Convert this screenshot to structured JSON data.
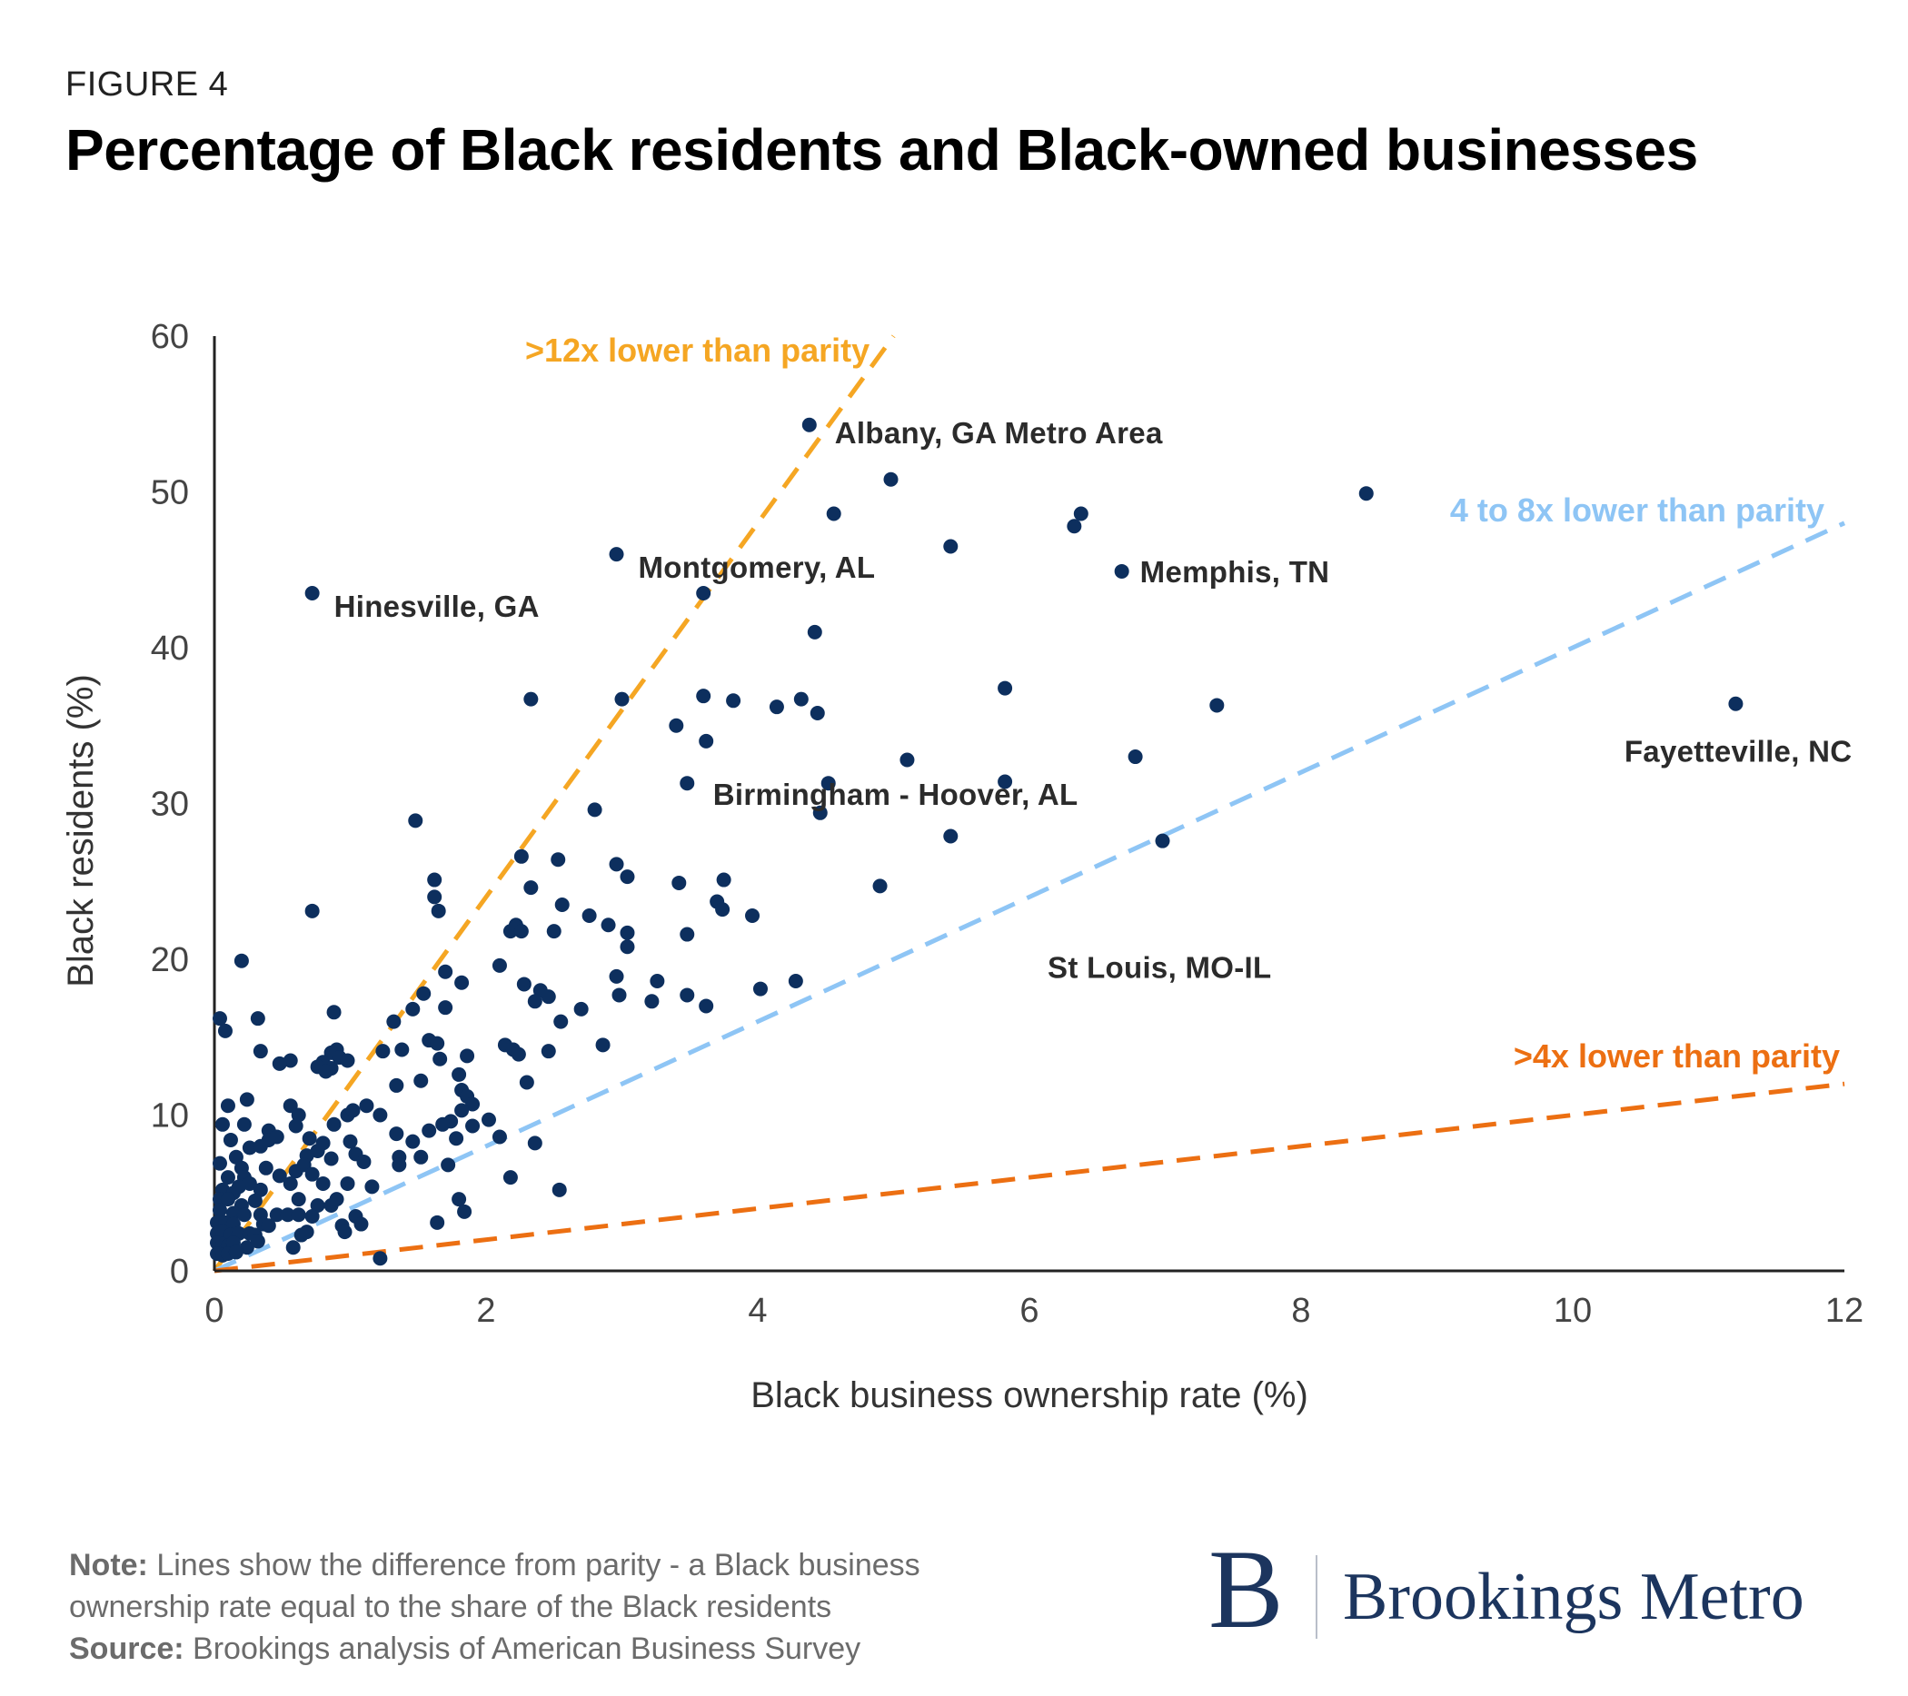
{
  "figure_label": "FIGURE 4",
  "title": "Percentage of Black residents and Black-owned businesses",
  "note": {
    "note_label": "Note:",
    "note_text": " Lines show the difference from parity - a Black business ownership rate equal to the share of the Black residents",
    "source_label": "Source:",
    "source_text": " Brookings analysis of American Business Survey"
  },
  "brand": {
    "mark": "B",
    "name": "Brookings Metro"
  },
  "colors": {
    "points": "#0d2f5e",
    "line_12x": "#f5a623",
    "line_4to8x": "#8ec5f5",
    "line_4x": "#ec6f12",
    "axis": "#222222",
    "tick_text": "#444444"
  },
  "chart_data": {
    "type": "scatter",
    "xlabel": "Black business ownership rate (%)",
    "ylabel": "Black residents (%)",
    "xlim": [
      0,
      12
    ],
    "ylim": [
      0,
      60
    ],
    "xticks": [
      "0",
      "2",
      "4",
      "6",
      "8",
      "10",
      "12"
    ],
    "yticks": [
      "0",
      "10",
      "20",
      "30",
      "40",
      "50",
      "60"
    ],
    "reference_lines": [
      {
        "label": ">12x lower than parity",
        "slope": 12,
        "color": "#f5a623"
      },
      {
        "label": "4 to 8x lower than parity",
        "slope": 4,
        "color": "#8ec5f5"
      },
      {
        "label": ">4x lower than parity",
        "slope": 1,
        "color": "#ec6f12"
      }
    ],
    "annotations": [
      {
        "label": "Albany, GA Metro Area",
        "x": 4.38,
        "y": 54.3
      },
      {
        "label": "Montgomery, AL",
        "x": 2.96,
        "y": 46.0
      },
      {
        "label": "Hinesville, GA",
        "x": 0.72,
        "y": 43.5
      },
      {
        "label": "Memphis, TN",
        "x": 6.68,
        "y": 44.9
      },
      {
        "label": "Fayetteville, NC",
        "x": 11.2,
        "y": 36.4
      },
      {
        "label": "Birmingham - Hoover, AL",
        "x": 3.55,
        "y": 30.5
      },
      {
        "label": "St Louis, MO-IL",
        "x": 5.96,
        "y": 19.5
      }
    ],
    "points": [
      [
        4.38,
        54.3
      ],
      [
        4.98,
        50.8
      ],
      [
        8.48,
        49.9
      ],
      [
        4.56,
        48.6
      ],
      [
        6.38,
        48.6
      ],
      [
        6.33,
        47.8
      ],
      [
        5.42,
        46.5
      ],
      [
        2.96,
        46.0
      ],
      [
        6.68,
        44.9
      ],
      [
        0.72,
        43.5
      ],
      [
        3.6,
        43.5
      ],
      [
        4.42,
        41.0
      ],
      [
        5.82,
        37.4
      ],
      [
        2.33,
        36.7
      ],
      [
        3.0,
        36.7
      ],
      [
        3.6,
        36.9
      ],
      [
        3.82,
        36.6
      ],
      [
        4.32,
        36.7
      ],
      [
        4.14,
        36.2
      ],
      [
        4.44,
        35.8
      ],
      [
        7.38,
        36.3
      ],
      [
        11.2,
        36.4
      ],
      [
        3.4,
        35.0
      ],
      [
        3.62,
        34.0
      ],
      [
        5.1,
        32.8
      ],
      [
        6.78,
        33.0
      ],
      [
        3.48,
        31.3
      ],
      [
        4.52,
        31.3
      ],
      [
        5.82,
        31.4
      ],
      [
        4.46,
        29.4
      ],
      [
        1.48,
        28.9
      ],
      [
        2.8,
        29.6
      ],
      [
        5.42,
        27.9
      ],
      [
        6.98,
        27.6
      ],
      [
        2.26,
        26.6
      ],
      [
        2.53,
        26.4
      ],
      [
        2.96,
        26.1
      ],
      [
        3.04,
        25.3
      ],
      [
        1.62,
        25.1
      ],
      [
        2.33,
        24.6
      ],
      [
        3.42,
        24.9
      ],
      [
        3.75,
        25.1
      ],
      [
        4.9,
        24.7
      ],
      [
        1.62,
        24.0
      ],
      [
        1.65,
        23.1
      ],
      [
        0.72,
        23.1
      ],
      [
        2.56,
        23.5
      ],
      [
        3.7,
        23.7
      ],
      [
        3.74,
        23.2
      ],
      [
        2.76,
        22.8
      ],
      [
        3.96,
        22.8
      ],
      [
        2.18,
        21.8
      ],
      [
        2.22,
        22.2
      ],
      [
        2.26,
        21.8
      ],
      [
        2.5,
        21.8
      ],
      [
        2.9,
        22.2
      ],
      [
        3.04,
        21.7
      ],
      [
        3.48,
        21.6
      ],
      [
        3.04,
        20.8
      ],
      [
        0.2,
        19.9
      ],
      [
        2.1,
        19.6
      ],
      [
        1.7,
        19.2
      ],
      [
        2.96,
        18.9
      ],
      [
        1.82,
        18.5
      ],
      [
        2.28,
        18.4
      ],
      [
        2.4,
        18.0
      ],
      [
        3.26,
        18.6
      ],
      [
        4.28,
        18.6
      ],
      [
        1.54,
        17.8
      ],
      [
        2.98,
        17.7
      ],
      [
        3.48,
        17.7
      ],
      [
        4.02,
        18.1
      ],
      [
        2.36,
        17.3
      ],
      [
        2.46,
        17.6
      ],
      [
        2.7,
        16.8
      ],
      [
        3.22,
        17.3
      ],
      [
        3.62,
        17.0
      ],
      [
        1.7,
        16.9
      ],
      [
        1.46,
        16.8
      ],
      [
        0.88,
        16.6
      ],
      [
        0.04,
        16.2
      ],
      [
        0.32,
        16.2
      ],
      [
        1.32,
        16.0
      ],
      [
        2.55,
        16.0
      ],
      [
        0.08,
        15.4
      ],
      [
        1.58,
        14.8
      ],
      [
        1.64,
        14.6
      ],
      [
        2.14,
        14.5
      ],
      [
        2.2,
        14.2
      ],
      [
        2.24,
        13.9
      ],
      [
        2.46,
        14.1
      ],
      [
        2.86,
        14.5
      ],
      [
        0.34,
        14.1
      ],
      [
        0.86,
        14.0
      ],
      [
        0.9,
        14.2
      ],
      [
        1.38,
        14.2
      ],
      [
        1.24,
        14.1
      ],
      [
        0.92,
        13.7
      ],
      [
        0.56,
        13.5
      ],
      [
        0.8,
        13.4
      ],
      [
        0.98,
        13.5
      ],
      [
        1.66,
        13.6
      ],
      [
        1.86,
        13.8
      ],
      [
        0.48,
        13.3
      ],
      [
        0.76,
        13.1
      ],
      [
        0.86,
        13.0
      ],
      [
        0.82,
        12.8
      ],
      [
        1.8,
        12.6
      ],
      [
        1.52,
        12.2
      ],
      [
        1.34,
        11.9
      ],
      [
        1.82,
        11.6
      ],
      [
        2.3,
        12.1
      ],
      [
        1.86,
        11.2
      ],
      [
        1.9,
        10.7
      ],
      [
        1.82,
        10.3
      ],
      [
        0.1,
        10.6
      ],
      [
        0.24,
        11.0
      ],
      [
        0.56,
        10.6
      ],
      [
        0.62,
        10.0
      ],
      [
        0.98,
        10.0
      ],
      [
        1.12,
        10.6
      ],
      [
        1.22,
        10.0
      ],
      [
        1.02,
        10.3
      ],
      [
        0.06,
        9.4
      ],
      [
        0.22,
        9.4
      ],
      [
        0.4,
        9.0
      ],
      [
        0.6,
        9.3
      ],
      [
        0.7,
        8.5
      ],
      [
        0.88,
        9.4
      ],
      [
        1.74,
        9.6
      ],
      [
        1.9,
        9.3
      ],
      [
        2.02,
        9.7
      ],
      [
        1.34,
        8.8
      ],
      [
        1.58,
        9.0
      ],
      [
        1.68,
        9.4
      ],
      [
        1.46,
        8.3
      ],
      [
        0.4,
        8.4
      ],
      [
        0.46,
        8.6
      ],
      [
        0.12,
        8.4
      ],
      [
        0.26,
        7.9
      ],
      [
        0.34,
        8.0
      ],
      [
        0.76,
        7.7
      ],
      [
        0.8,
        8.2
      ],
      [
        1.0,
        8.3
      ],
      [
        2.1,
        8.6
      ],
      [
        2.36,
        8.2
      ],
      [
        1.78,
        8.5
      ],
      [
        1.36,
        7.3
      ],
      [
        1.52,
        7.3
      ],
      [
        1.04,
        7.5
      ],
      [
        0.68,
        7.4
      ],
      [
        0.86,
        7.2
      ],
      [
        0.16,
        7.3
      ],
      [
        0.04,
        6.9
      ],
      [
        0.2,
        6.6
      ],
      [
        0.38,
        6.6
      ],
      [
        0.6,
        6.4
      ],
      [
        0.66,
        6.8
      ],
      [
        1.1,
        7.0
      ],
      [
        1.36,
        6.8
      ],
      [
        1.72,
        6.8
      ],
      [
        0.1,
        6.0
      ],
      [
        0.22,
        6.0
      ],
      [
        0.26,
        5.6
      ],
      [
        0.48,
        6.1
      ],
      [
        0.56,
        5.6
      ],
      [
        0.72,
        6.2
      ],
      [
        0.8,
        5.6
      ],
      [
        0.06,
        5.2
      ],
      [
        0.14,
        5.0
      ],
      [
        0.18,
        5.4
      ],
      [
        0.34,
        5.2
      ],
      [
        0.98,
        5.6
      ],
      [
        1.16,
        5.4
      ],
      [
        2.18,
        6.0
      ],
      [
        2.54,
        5.2
      ],
      [
        0.04,
        4.6
      ],
      [
        0.1,
        4.6
      ],
      [
        0.2,
        4.2
      ],
      [
        0.3,
        4.5
      ],
      [
        0.62,
        4.6
      ],
      [
        0.76,
        4.2
      ],
      [
        0.86,
        4.2
      ],
      [
        0.9,
        4.6
      ],
      [
        1.8,
        4.6
      ],
      [
        0.04,
        3.9
      ],
      [
        0.14,
        3.7
      ],
      [
        0.22,
        3.6
      ],
      [
        0.34,
        3.6
      ],
      [
        0.46,
        3.6
      ],
      [
        0.54,
        3.6
      ],
      [
        0.62,
        3.6
      ],
      [
        0.72,
        3.5
      ],
      [
        1.04,
        3.5
      ],
      [
        1.84,
        3.8
      ],
      [
        0.02,
        3.1
      ],
      [
        0.08,
        3.1
      ],
      [
        0.14,
        3.0
      ],
      [
        0.36,
        3.0
      ],
      [
        0.4,
        2.9
      ],
      [
        0.94,
        2.9
      ],
      [
        1.08,
        3.0
      ],
      [
        1.64,
        3.1
      ],
      [
        0.02,
        2.4
      ],
      [
        0.06,
        2.5
      ],
      [
        0.12,
        2.3
      ],
      [
        0.18,
        2.4
      ],
      [
        0.26,
        2.4
      ],
      [
        0.3,
        2.3
      ],
      [
        0.64,
        2.3
      ],
      [
        0.68,
        2.5
      ],
      [
        0.96,
        2.5
      ],
      [
        0.02,
        1.8
      ],
      [
        0.06,
        1.7
      ],
      [
        0.1,
        1.6
      ],
      [
        0.14,
        1.8
      ],
      [
        0.24,
        1.5
      ],
      [
        0.32,
        1.9
      ],
      [
        0.58,
        1.5
      ],
      [
        0.02,
        1.1
      ],
      [
        0.06,
        1.0
      ],
      [
        0.1,
        1.1
      ],
      [
        0.16,
        1.2
      ],
      [
        1.22,
        0.8
      ]
    ]
  }
}
